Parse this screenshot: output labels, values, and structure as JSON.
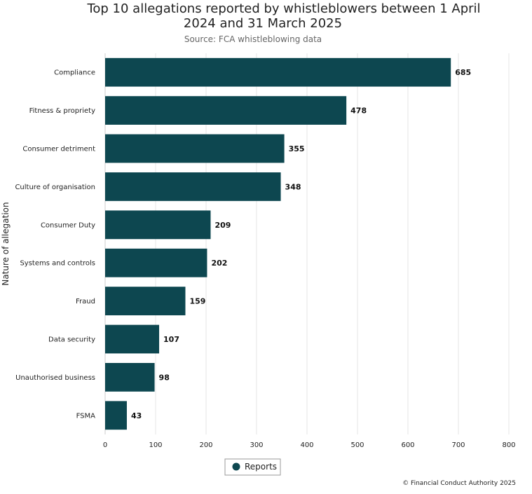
{
  "chart_data": {
    "type": "bar",
    "orientation": "horizontal",
    "title_line1": "Top 10 allegations reported by whistleblowers between 1 April",
    "title_line2": "2024 and 31 March 2025",
    "subtitle": "Source: FCA whistleblowing data",
    "ylabel": "Nature of allegation",
    "xlabel": "",
    "categories": [
      "Compliance",
      "Fitness & propriety",
      "Consumer detriment",
      "Culture of organisation",
      "Consumer Duty",
      "Systems and controls",
      "Fraud",
      "Data security",
      "Unauthorised business",
      "FSMA"
    ],
    "series": [
      {
        "name": "Reports",
        "values": [
          685,
          478,
          355,
          348,
          209,
          202,
          159,
          107,
          98,
          43
        ],
        "color": "#0d4750"
      }
    ],
    "xlim": [
      0,
      800
    ],
    "xticks": [
      "0",
      "100",
      "200",
      "300",
      "400",
      "500",
      "600",
      "700",
      "800"
    ],
    "grid": true,
    "legend_position": "bottom"
  },
  "credit": "© Financial Conduct Authority 2025"
}
